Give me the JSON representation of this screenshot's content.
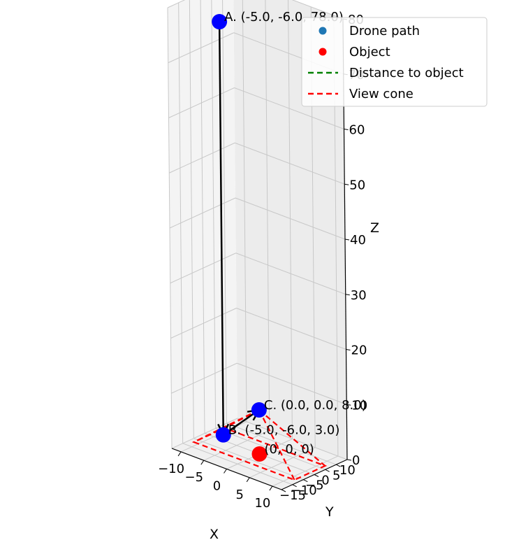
{
  "chart_data": {
    "type": "scatter",
    "projection": "3d",
    "title": "",
    "xlabel": "X",
    "ylabel": "Y",
    "zlabel": "Z",
    "xlim": [
      -12,
      12
    ],
    "ylim": [
      -15,
      15
    ],
    "zlim": [
      0,
      80
    ],
    "x_ticks": [
      -10,
      -5,
      0,
      5,
      10
    ],
    "y_ticks": [
      -15,
      -10,
      -5,
      0,
      5,
      10
    ],
    "z_ticks": [
      0,
      10,
      20,
      30,
      40,
      50,
      60,
      70,
      80
    ],
    "grid": true,
    "legend_position": "top-right",
    "legend": [
      {
        "label": "Drone path",
        "marker": "dot",
        "color": "#1f77b4"
      },
      {
        "label": "Object",
        "marker": "dot",
        "color": "#ff0000"
      },
      {
        "label": "Distance to object",
        "marker": "dashed-line",
        "color": "#008000"
      },
      {
        "label": "View cone",
        "marker": "dashed-line",
        "color": "#ff0000"
      }
    ],
    "drone_points": [
      {
        "label": "A. (-5.0, -6.0, 78.0)",
        "x": -5.0,
        "y": -6.0,
        "z": 78.0
      },
      {
        "label": "B. (-5.0, -6.0, 3.0)",
        "x": -5.0,
        "y": -6.0,
        "z": 3.0
      },
      {
        "label": "C. (0.0, 0.0, 8.0)",
        "x": 0.0,
        "y": 0.0,
        "z": 8.0
      }
    ],
    "object_point": {
      "label": "(0, 0, 0)",
      "x": 0,
      "y": 0,
      "z": 0
    },
    "path_arrows": [
      {
        "from": "A",
        "to": "B"
      },
      {
        "from": "B",
        "to": "C"
      }
    ],
    "view_cone_base": [
      [
        -11,
        -7,
        0
      ],
      [
        11,
        -7,
        0
      ],
      [
        11,
        7,
        0
      ],
      [
        -11,
        7,
        0
      ]
    ],
    "view_cone_apex": [
      0,
      0,
      8
    ],
    "colors": {
      "drone": "#0000ff",
      "object": "#ff0000",
      "path": "#000000",
      "cone": "#ff0000"
    }
  }
}
